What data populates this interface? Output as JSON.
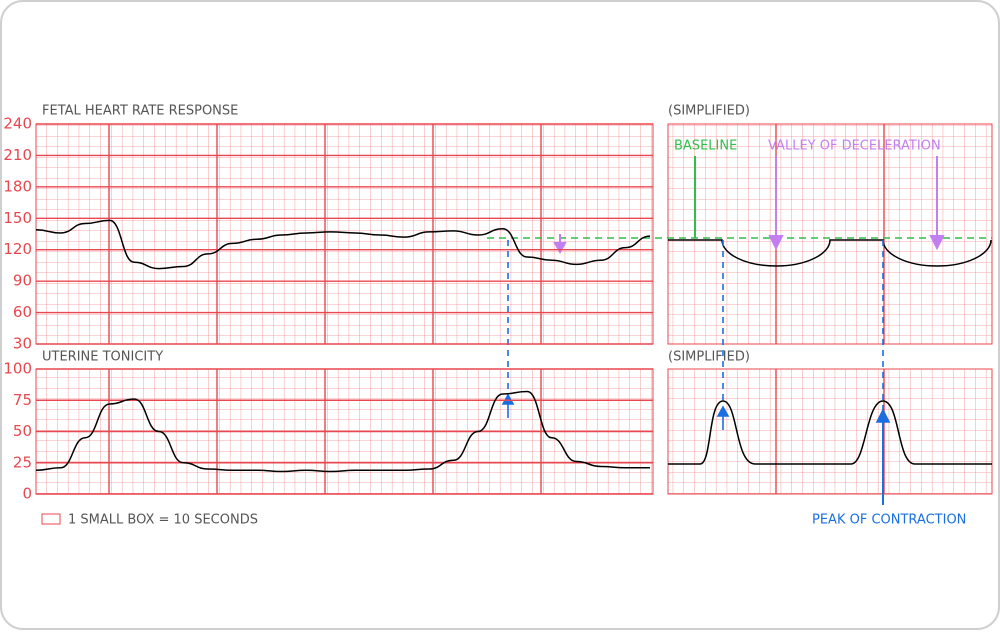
{
  "chart_data": [
    {
      "type": "line",
      "title": "FETAL HEART RATE RESPONSE",
      "color": "#000000",
      "values": [
        139,
        136,
        145,
        148,
        108,
        102,
        104,
        116,
        126,
        130,
        134,
        136,
        137,
        136,
        134,
        132,
        137,
        138,
        134,
        140,
        113,
        110,
        106,
        110,
        122,
        133
      ],
      "ylim": [
        30,
        240
      ],
      "yticks": [
        30,
        60,
        90,
        120,
        150,
        180,
        210,
        240
      ],
      "grid": true
    },
    {
      "type": "line",
      "title": "UTERINE TONICITY",
      "color": "#000000",
      "values": [
        19,
        21,
        45,
        72,
        76,
        50,
        25,
        20,
        19,
        19,
        18,
        19,
        18,
        19,
        19,
        19,
        20,
        27,
        50,
        80,
        82,
        45,
        26,
        22,
        21,
        21
      ],
      "ylim": [
        0,
        100
      ],
      "yticks": [
        0,
        25,
        50,
        75,
        100
      ],
      "grid": true
    }
  ],
  "simplified_titles": [
    "(SIMPLIFIED)",
    "(SIMPLIFIED)"
  ],
  "annotations": {
    "baseline": "BASELINE",
    "valley": "VALLEY OF DECELERATION",
    "peak": "PEAK OF CONTRACTION"
  },
  "scale_note": "1 SMALL BOX = 10 SECONDS"
}
